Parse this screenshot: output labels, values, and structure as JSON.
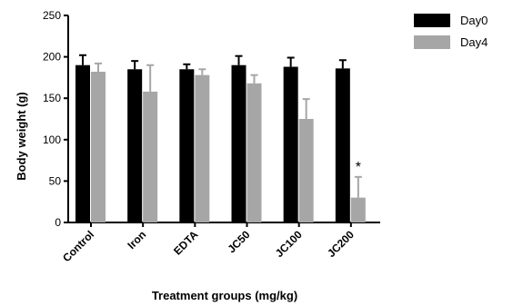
{
  "chart_data": {
    "type": "bar",
    "title": "",
    "xlabel": "Treatment groups (mg/kg)",
    "ylabel": "Body weight (g)",
    "ylim": [
      0,
      250
    ],
    "yticks": [
      "0",
      "50",
      "100",
      "150",
      "200",
      "250"
    ],
    "categories": [
      "Control",
      "Iron",
      "EDTA",
      "JC50",
      "JC100",
      "JC200"
    ],
    "series": [
      {
        "name": "Day0",
        "color": "#000000",
        "values": [
          190,
          185,
          185,
          190,
          188,
          186
        ],
        "errors": [
          12,
          10,
          6,
          11,
          11,
          10
        ]
      },
      {
        "name": "Day4",
        "color": "#a6a6a6",
        "values": [
          182,
          158,
          178,
          168,
          125,
          30
        ],
        "errors": [
          10,
          32,
          7,
          10,
          24,
          25
        ]
      }
    ],
    "annotations": [
      {
        "category": "JC200",
        "series": "Day4",
        "text": "*"
      }
    ],
    "legend_position": "top-right",
    "grid": false
  }
}
